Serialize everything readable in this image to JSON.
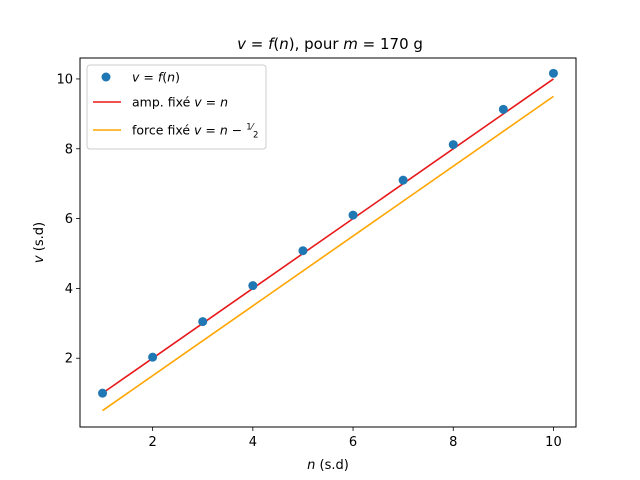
{
  "chart_data": {
    "type": "scatter",
    "title": {
      "parts": [
        {
          "t": "v",
          "i": true
        },
        {
          "t": " = ",
          "i": false
        },
        {
          "t": "f",
          "i": true
        },
        {
          "t": "(",
          "i": false
        },
        {
          "t": "n",
          "i": true
        },
        {
          "t": "), pour ",
          "i": false
        },
        {
          "t": "m",
          "i": true
        },
        {
          "t": " = 170 g",
          "i": false
        }
      ]
    },
    "xlabel": {
      "parts": [
        {
          "t": "n",
          "i": true
        },
        {
          "t": " (s.d)",
          "i": false
        }
      ]
    },
    "ylabel": {
      "parts": [
        {
          "t": "v",
          "i": true
        },
        {
          "t": " (s.d)",
          "i": false
        }
      ]
    },
    "xlim": [
      0.55,
      10.45
    ],
    "ylim": [
      0.03,
      10.6
    ],
    "xticks": [
      2,
      4,
      6,
      8,
      10
    ],
    "yticks": [
      2,
      4,
      6,
      8,
      10
    ],
    "grid": false,
    "legend_position": "top-left",
    "points": {
      "label_parts": [
        {
          "t": "v",
          "i": true
        },
        {
          "t": " = ",
          "i": false
        },
        {
          "t": "f",
          "i": true
        },
        {
          "t": "(",
          "i": false
        },
        {
          "t": "n",
          "i": true
        },
        {
          "t": ")",
          "i": false
        }
      ],
      "color": "#1f77b4",
      "x": [
        1,
        2,
        3,
        4,
        5,
        6,
        7,
        8,
        9,
        10
      ],
      "y": [
        1.0,
        2.03,
        3.05,
        4.08,
        5.08,
        6.1,
        7.1,
        8.12,
        9.13,
        10.16
      ]
    },
    "lines": [
      {
        "label_parts": [
          {
            "t": "amp. fixé ",
            "i": false
          },
          {
            "t": "v",
            "i": true
          },
          {
            "t": " = ",
            "i": false
          },
          {
            "t": "n",
            "i": true
          }
        ],
        "color": "#e8191a",
        "x": [
          1,
          10
        ],
        "y": [
          1,
          10
        ]
      },
      {
        "label_parts": [
          {
            "t": "force fixé ",
            "i": false
          },
          {
            "t": "v",
            "i": true
          },
          {
            "t": " = ",
            "i": false
          },
          {
            "t": "n",
            "i": true
          },
          {
            "t": " − ",
            "i": false
          }
        ],
        "fraction": {
          "num": "1",
          "den": "2"
        },
        "color": "#ffa500",
        "x": [
          1,
          10
        ],
        "y": [
          0.5,
          9.5
        ]
      }
    ]
  }
}
